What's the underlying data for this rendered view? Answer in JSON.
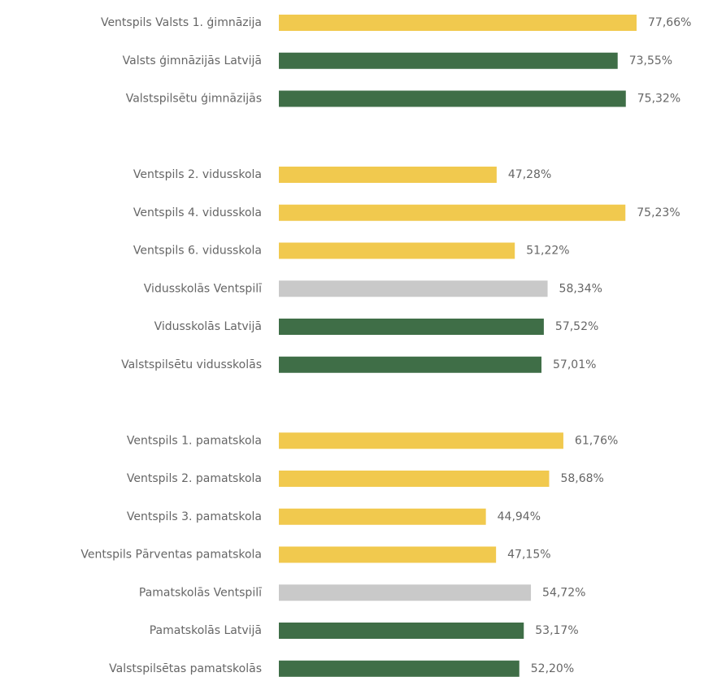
{
  "chart_data": {
    "type": "hbar",
    "categories": [
      "Ventspils Valsts 1. ģimnāzija",
      "Valsts ģimnāzijās Latvijā",
      "Valstspilsētu ģimnāzijās",
      null,
      "Ventspils 2. vidusskola",
      "Ventspils 4. vidusskola",
      "Ventspils 6. vidusskola",
      "Vidusskolās Ventspilī",
      "Vidusskolās Latvijā",
      "Valstspilsētu vidusskolās",
      null,
      "Ventspils 1. pamatskola",
      "Ventspils 2. pamatskola",
      "Ventspils 3. pamatskola",
      "Ventspils Pārventas pamatskola",
      "Pamatskolās Ventspilī",
      "Pamatskolās Latvijā",
      "Valstspilsētas pamatskolās"
    ],
    "values": [
      77.66,
      73.55,
      75.32,
      null,
      47.28,
      75.23,
      51.22,
      58.34,
      57.52,
      57.01,
      null,
      61.76,
      58.68,
      44.94,
      47.15,
      54.72,
      53.17,
      52.2
    ],
    "value_labels": [
      "77,66%",
      "73,55%",
      "75,32%",
      null,
      "47,28%",
      "75,23%",
      "51,22%",
      "58,34%",
      "57,52%",
      "57,01%",
      null,
      "61,76%",
      "58,68%",
      "44,94%",
      "47,15%",
      "54,72%",
      "53,17%",
      "52,20%"
    ],
    "colors": [
      "#f1c94e",
      "#3f6e47",
      "#3f6e47",
      null,
      "#f1c94e",
      "#f1c94e",
      "#f1c94e",
      "#c9c9c9",
      "#3f6e47",
      "#3f6e47",
      null,
      "#f1c94e",
      "#f1c94e",
      "#f1c94e",
      "#f1c94e",
      "#c9c9c9",
      "#3f6e47",
      "#3f6e47"
    ]
  }
}
